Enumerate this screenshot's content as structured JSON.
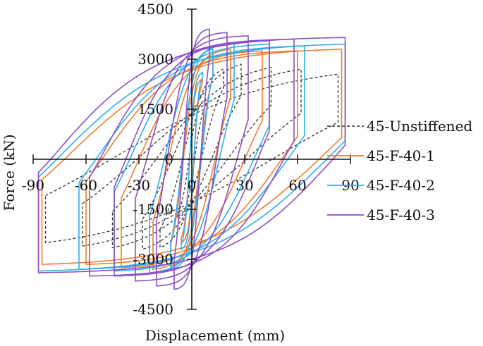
{
  "chart_data": {
    "type": "line",
    "xlabel": "Displacement (mm)",
    "ylabel": "Force (kN)",
    "xlim": [
      -90,
      90
    ],
    "ylim": [
      -4500,
      4500
    ],
    "x_ticks": [
      -90,
      -60,
      -30,
      0,
      30,
      60,
      90
    ],
    "y_ticks": [
      -4500,
      -3000,
      -1500,
      0,
      1500,
      3000,
      4500
    ],
    "grid": false,
    "legend_position": "right",
    "series": [
      {
        "name": "45-Unstiffened",
        "color": "#333333",
        "dash": "dashed",
        "loops": [
          {
            "amp": 8,
            "fmax": 1800,
            "fmin": -1800,
            "w": 0.2,
            "k": 2.0
          },
          {
            "amp": 18,
            "fmax": 2700,
            "fmin": -2650,
            "w": 0.3,
            "k": 1.8
          },
          {
            "amp": 28,
            "fmax": 2850,
            "fmin": -2700,
            "w": 0.4,
            "k": 1.7
          },
          {
            "amp": 45,
            "fmax": 2750,
            "fmin": -2650,
            "w": 0.45,
            "k": 1.6
          },
          {
            "amp": 62,
            "fmax": 2700,
            "fmin": -2600,
            "w": 0.5,
            "k": 1.5
          },
          {
            "amp": 83,
            "fmax": 2550,
            "fmin": -2500,
            "w": 0.55,
            "k": 1.4
          }
        ]
      },
      {
        "name": "45-F-40-1",
        "color": "#ed7d31",
        "dash": "solid",
        "loops": [
          {
            "amp": 6,
            "fmax": 2400,
            "fmin": -2500,
            "w": 0.2,
            "k": 2.5
          },
          {
            "amp": 12,
            "fmax": 3100,
            "fmin": -3200,
            "w": 0.4,
            "k": 2.5
          },
          {
            "amp": 22,
            "fmax": 3300,
            "fmin": -3300,
            "w": 0.6,
            "k": 2.5
          },
          {
            "amp": 40,
            "fmax": 3250,
            "fmin": -3250,
            "w": 0.75,
            "k": 2.6
          },
          {
            "amp": 60,
            "fmax": 3250,
            "fmin": -3150,
            "w": 0.85,
            "k": 2.6
          },
          {
            "amp": 85,
            "fmax": 3300,
            "fmin": -3150,
            "w": 0.85,
            "k": 2.4
          }
        ]
      },
      {
        "name": "45-F-40-2",
        "color": "#2eaef0",
        "dash": "solid",
        "loops": [
          {
            "amp": 6,
            "fmax": 2600,
            "fmin": -2700,
            "w": 0.2,
            "k": 2.5
          },
          {
            "amp": 12,
            "fmax": 3300,
            "fmin": -3300,
            "w": 0.45,
            "k": 2.6
          },
          {
            "amp": 24,
            "fmax": 3500,
            "fmin": -3400,
            "w": 0.65,
            "k": 2.6
          },
          {
            "amp": 44,
            "fmax": 3450,
            "fmin": -3350,
            "w": 0.8,
            "k": 2.7
          },
          {
            "amp": 64,
            "fmax": 3400,
            "fmin": -3300,
            "w": 0.85,
            "k": 2.6
          },
          {
            "amp": 87,
            "fmax": 3450,
            "fmin": -3350,
            "w": 0.88,
            "k": 2.5
          }
        ]
      },
      {
        "name": "45-F-40-3",
        "color": "#8b4fc4",
        "dash": "solid",
        "loops": [
          {
            "amp": 10,
            "fmax": 3900,
            "fmin": -3900,
            "w": 0.5,
            "k": 3.0
          },
          {
            "amp": 20,
            "fmax": 3800,
            "fmin": -3800,
            "w": 0.7,
            "k": 3.0
          },
          {
            "amp": 32,
            "fmax": 3700,
            "fmin": -3650,
            "w": 0.8,
            "k": 3.0
          },
          {
            "amp": 44,
            "fmax": 3550,
            "fmin": -3500,
            "w": 0.85,
            "k": 3.0
          },
          {
            "amp": 58,
            "fmax": 3600,
            "fmin": -3500,
            "w": 0.9,
            "k": 3.0
          },
          {
            "amp": 87,
            "fmax": 3650,
            "fmin": -3400,
            "w": 0.92,
            "k": 2.8
          }
        ]
      }
    ]
  }
}
